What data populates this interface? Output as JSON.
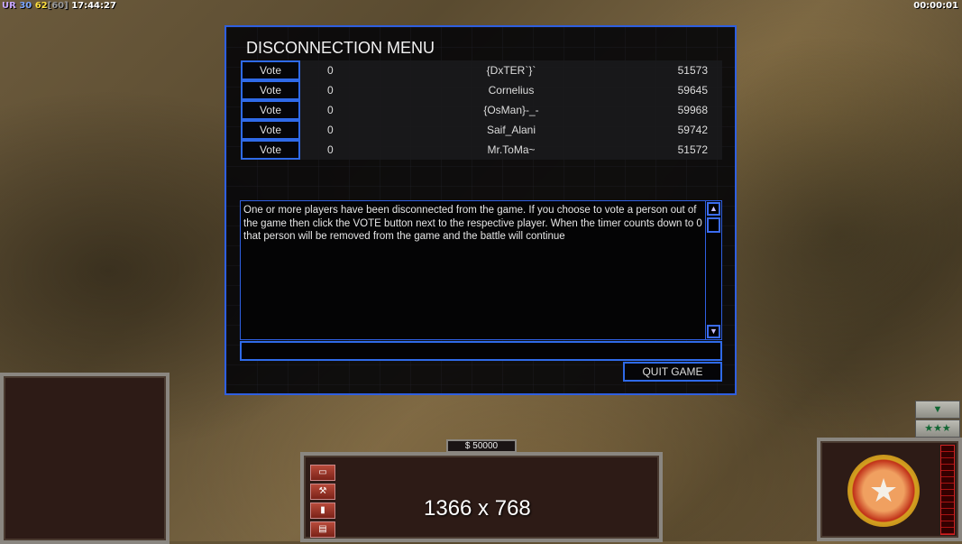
{
  "hud": {
    "faction": "UR",
    "value1": "30",
    "value2": "62",
    "value3": "[60]",
    "clock": "17:44:27",
    "timer": "00:00:01"
  },
  "dialog": {
    "title": "DISCONNECTION MENU",
    "players": [
      {
        "vote_label": "Vote",
        "votes": "0",
        "name": "{DxTER`}`",
        "id": "51573"
      },
      {
        "vote_label": "Vote",
        "votes": "0",
        "name": "Cornelius",
        "id": "59645"
      },
      {
        "vote_label": "Vote",
        "votes": "0",
        "name": "{OsMan}-_-",
        "id": "59968"
      },
      {
        "vote_label": "Vote",
        "votes": "0",
        "name": "Saif_Alani",
        "id": "59742"
      },
      {
        "vote_label": "Vote",
        "votes": "0",
        "name": "Mr.ToMa~",
        "id": "51572"
      }
    ],
    "message": "One or more players have been disconnected from the game. If you choose to vote a person out of the game then click the VOTE button next to the respective player. When the timer counts down to 0 that person will be removed from the game and the battle will continue",
    "chat_value": "",
    "quit_label": "QUIT GAME"
  },
  "control_bar": {
    "money": "$ 50000",
    "resolution_overlay": "1366 x 768",
    "rank_stars": "★★★"
  },
  "colors": {
    "accent": "#2f6ae8",
    "panel": "#2d1b16"
  }
}
